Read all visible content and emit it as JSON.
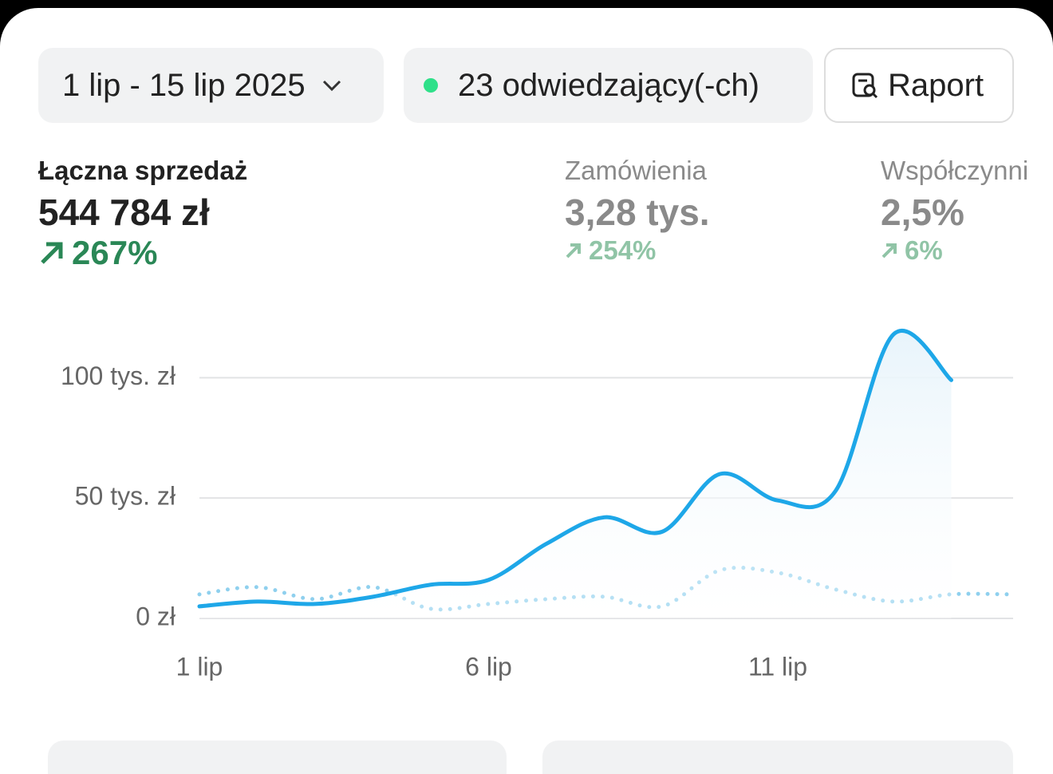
{
  "header": {
    "date_range": "1 lip - 15 lip 2025",
    "visitors": "23 odwiedzający(-ch)",
    "report_button": "Raport"
  },
  "metrics": [
    {
      "title": "Łączna sprzedaż",
      "value": "544 784 zł",
      "change": "267%"
    },
    {
      "title": "Zamówienia",
      "value": "3,28 tys.",
      "change": "254%"
    },
    {
      "title": "Współczynni",
      "value": "2,5%",
      "change": "6%"
    }
  ],
  "chart_data": {
    "type": "line",
    "categories": [
      "1 lip",
      null,
      null,
      null,
      null,
      "6 lip",
      null,
      null,
      null,
      null,
      "11 lip",
      null,
      null,
      null,
      null
    ],
    "series": [
      {
        "color": "#1ea7e8",
        "area": true,
        "values": [
          5000,
          7000,
          6000,
          9000,
          14000,
          16000,
          31000,
          42000,
          36000,
          60000,
          49000,
          53000,
          118000,
          99000,
          null
        ]
      },
      {
        "color": "#8fd0ee",
        "style": "dotted",
        "values": [
          10000,
          13000,
          8000,
          13000,
          4000,
          6000,
          8000,
          9000,
          5000,
          20000,
          19000,
          12000,
          7000,
          10000,
          10000
        ]
      }
    ],
    "ylim": [
      0,
      120000
    ],
    "yticks": [
      {
        "value": 0,
        "label": "0 zł"
      },
      {
        "value": 50000,
        "label": "50 tys. zł"
      },
      {
        "value": 100000,
        "label": "100 tys. zł"
      }
    ],
    "grid": true
  }
}
